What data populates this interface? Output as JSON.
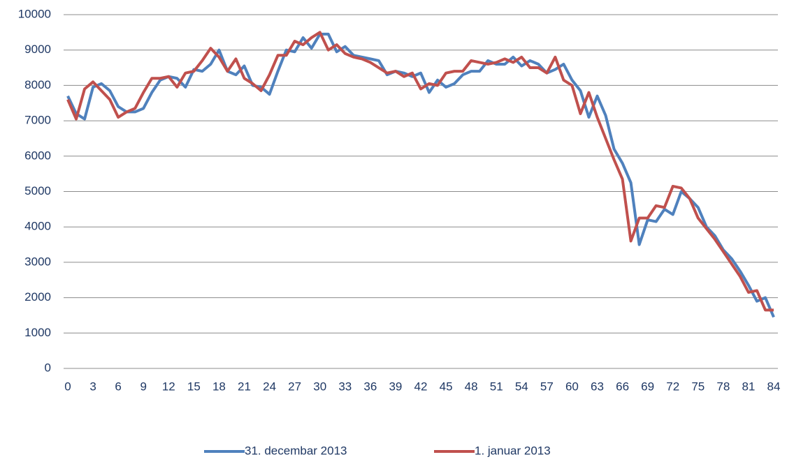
{
  "chart_data": {
    "type": "line",
    "x": [
      0,
      1,
      2,
      3,
      4,
      5,
      6,
      7,
      8,
      9,
      10,
      11,
      12,
      13,
      14,
      15,
      16,
      17,
      18,
      19,
      20,
      21,
      22,
      23,
      24,
      25,
      26,
      27,
      28,
      29,
      30,
      31,
      32,
      33,
      34,
      35,
      36,
      37,
      38,
      39,
      40,
      41,
      42,
      43,
      44,
      45,
      46,
      47,
      48,
      49,
      50,
      51,
      52,
      53,
      54,
      55,
      56,
      57,
      58,
      59,
      60,
      61,
      62,
      63,
      64,
      65,
      66,
      67,
      68,
      69,
      70,
      71,
      72,
      73,
      74,
      75,
      76,
      77,
      78,
      79,
      80,
      81,
      82,
      83,
      84
    ],
    "series": [
      {
        "name": "31. decembar 2013",
        "color": "#4f81bd",
        "values": [
          7700,
          7200,
          7050,
          7950,
          8050,
          7850,
          7400,
          7250,
          7250,
          7350,
          7800,
          8150,
          8250,
          8200,
          7950,
          8450,
          8400,
          8600,
          9000,
          8400,
          8300,
          8550,
          8000,
          7950,
          7750,
          8400,
          9000,
          8950,
          9350,
          9050,
          9450,
          9450,
          8950,
          9100,
          8850,
          8800,
          8750,
          8700,
          8300,
          8400,
          8350,
          8250,
          8350,
          7800,
          8150,
          7950,
          8050,
          8300,
          8400,
          8400,
          8700,
          8600,
          8600,
          8800,
          8550,
          8700,
          8600,
          8350,
          8450,
          8600,
          8150,
          7850,
          7100,
          7700,
          7150,
          6200,
          5800,
          5250,
          3500,
          4200,
          4150,
          4500,
          4350,
          5000,
          4800,
          4550,
          4000,
          3750,
          3350,
          3100,
          2750,
          2350,
          1900,
          2000,
          1450
        ]
      },
      {
        "name": "1. januar 2013",
        "color": "#c0504d",
        "values": [
          7600,
          7050,
          7900,
          8100,
          7850,
          7600,
          7100,
          7250,
          7350,
          7800,
          8200,
          8200,
          8250,
          7950,
          8350,
          8400,
          8700,
          9050,
          8800,
          8400,
          8750,
          8200,
          8050,
          7850,
          8300,
          8850,
          8850,
          9250,
          9150,
          9350,
          9500,
          9000,
          9150,
          8900,
          8800,
          8750,
          8650,
          8500,
          8350,
          8400,
          8250,
          8350,
          7900,
          8050,
          8000,
          8350,
          8400,
          8400,
          8700,
          8650,
          8600,
          8650,
          8750,
          8650,
          8800,
          8500,
          8500,
          8350,
          8800,
          8150,
          8000,
          7200,
          7800,
          7100,
          6500,
          5900,
          5350,
          3600,
          4250,
          4250,
          4600,
          4550,
          5150,
          5100,
          4800,
          4250,
          3950,
          3650,
          3300,
          2950,
          2600,
          2150,
          2200,
          1650,
          1650
        ]
      }
    ],
    "xlim": [
      0,
      84
    ],
    "xticks": [
      0,
      3,
      6,
      9,
      12,
      15,
      18,
      21,
      24,
      27,
      30,
      33,
      36,
      39,
      42,
      45,
      48,
      51,
      54,
      57,
      60,
      63,
      66,
      69,
      72,
      75,
      78,
      81,
      84
    ],
    "ylim": [
      0,
      10000
    ],
    "yticks": [
      0,
      1000,
      2000,
      3000,
      4000,
      5000,
      6000,
      7000,
      8000,
      9000,
      10000
    ],
    "grid": true,
    "legend": "bottom"
  }
}
